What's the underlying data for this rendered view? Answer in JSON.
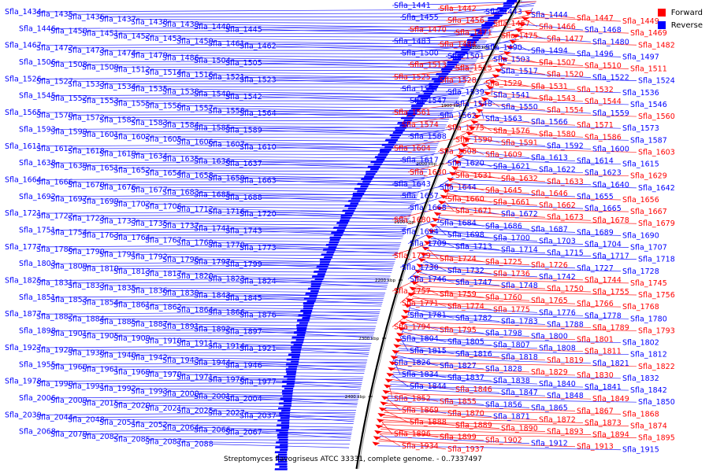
{
  "caption": "Streptomyces flavogriseus ATCC 33331, complete genome. - 0..7337497",
  "legend": {
    "forward": {
      "label": "Forward",
      "color": "#ff0000"
    },
    "reverse": {
      "label": "Reverse",
      "color": "#0000ff"
    }
  },
  "colors": {
    "forward": "#ff0000",
    "reverse": "#0000ff",
    "backbone": "#000000",
    "forward_line": "#ff2020",
    "reverse_line": "#2020ff"
  },
  "scale_ticks": [
    "1800 kbp",
    "1900 kbp",
    "2000 kbp",
    "2100 kbp",
    "2200 kbp",
    "2300 kbp",
    "2400 kbp"
  ],
  "reverse_labels": [
    "Sfla_1434",
    "Sfla_1435",
    "Sfla_1436",
    "Sfla_1437",
    "Sfla_1438",
    "Sfla_1439",
    "Sfla_1440",
    "Sfla_1445",
    "Sfla_1446",
    "Sfla_1450",
    "Sfla_1451",
    "Sfla_1452",
    "Sfla_1453",
    "Sfla_1459",
    "Sfla_1461",
    "Sfla_1462",
    "Sfla_1467",
    "Sfla_1472",
    "Sfla_1473",
    "Sfla_1474",
    "Sfla_1479",
    "Sfla_1486",
    "Sfla_1504",
    "Sfla_1505",
    "Sfla_1506",
    "Sfla_1508",
    "Sfla_1509",
    "Sfla_1512",
    "Sfla_1514",
    "Sfla_1516",
    "Sfla_1521",
    "Sfla_1523",
    "Sfla_1526",
    "Sfla_1527",
    "Sfla_1533",
    "Sfla_1534",
    "Sfla_1535",
    "Sfla_1538",
    "Sfla_1540",
    "Sfla_1542",
    "Sfla_1545",
    "Sfla_1552",
    "Sfla_1553",
    "Sfla_1555",
    "Sfla_1556",
    "Sfla_1557",
    "Sfla_1558",
    "Sfla_1564",
    "Sfla_1565",
    "Sfla_1570",
    "Sfla_1572",
    "Sfla_1582",
    "Sfla_1583",
    "Sfla_1584",
    "Sfla_1585",
    "Sfla_1589",
    "Sfla_1593",
    "Sfla_1599",
    "Sfla_1601",
    "Sfla_1602",
    "Sfla_1605",
    "Sfla_1606",
    "Sfla_1607",
    "Sfla_1610",
    "Sfla_1611",
    "Sfla_1612",
    "Sfla_1618",
    "Sfla_1619",
    "Sfla_1634",
    "Sfla_1635",
    "Sfla_1636",
    "Sfla_1637",
    "Sfla_1638",
    "Sfla_1639",
    "Sfla_1651",
    "Sfla_1652",
    "Sfla_1654",
    "Sfla_1658",
    "Sfla_1659",
    "Sfla_1663",
    "Sfla_1664",
    "Sfla_1666",
    "Sfla_1670",
    "Sfla_1676",
    "Sfla_1677",
    "Sfla_1683",
    "Sfla_1685",
    "Sfla_1688",
    "Sfla_1692",
    "Sfla_1697",
    "Sfla_1699",
    "Sfla_1702",
    "Sfla_1706",
    "Sfla_1712",
    "Sfla_1716",
    "Sfla_1720",
    "Sfla_1721",
    "Sfla_1722",
    "Sfla_1723",
    "Sfla_1733",
    "Sfla_1735",
    "Sfla_1737",
    "Sfla_1741",
    "Sfla_1743",
    "Sfla_1751",
    "Sfla_1754",
    "Sfla_1763",
    "Sfla_1764",
    "Sfla_1767",
    "Sfla_1769",
    "Sfla_1770",
    "Sfla_1773",
    "Sfla_1777",
    "Sfla_1786",
    "Sfla_1790",
    "Sfla_1791",
    "Sfla_1792",
    "Sfla_1796",
    "Sfla_1797",
    "Sfla_1799",
    "Sfla_1803",
    "Sfla_1809",
    "Sfla_1810",
    "Sfla_1813",
    "Sfla_1817",
    "Sfla_1820",
    "Sfla_1823",
    "Sfla_1824",
    "Sfla_1825",
    "Sfla_1831",
    "Sfla_1833",
    "Sfla_1835",
    "Sfla_1836",
    "Sfla_1839",
    "Sfla_1843",
    "Sfla_1845",
    "Sfla_1851",
    "Sfla_1853",
    "Sfla_1854",
    "Sfla_1861",
    "Sfla_1862",
    "Sfla_1864",
    "Sfla_1866",
    "Sfla_1876",
    "Sfla_1877",
    "Sfla_1882",
    "Sfla_1884",
    "Sfla_1885",
    "Sfla_1887",
    "Sfla_1891",
    "Sfla_1892",
    "Sfla_1897",
    "Sfla_1898",
    "Sfla_1901",
    "Sfla_1905",
    "Sfla_1909",
    "Sfla_1910",
    "Sfla_1911",
    "Sfla_1914",
    "Sfla_1921",
    "Sfla_1927",
    "Sfla_1929",
    "Sfla_1938",
    "Sfla_1940",
    "Sfla_1942",
    "Sfla_1943",
    "Sfla_1944",
    "Sfla_1946",
    "Sfla_1955",
    "Sfla_1960",
    "Sfla_1961",
    "Sfla_1969",
    "Sfla_1970",
    "Sfla_1971",
    "Sfla_1976",
    "Sfla_1977",
    "Sfla_1978",
    "Sfla_1990",
    "Sfla_1991",
    "Sfla_1992",
    "Sfla_1993",
    "Sfla_2000",
    "Sfla_2001",
    "Sfla_2004",
    "Sfla_2006",
    "Sfla_2009",
    "Sfla_2015",
    "Sfla_2020",
    "Sfla_2021",
    "Sfla_2025",
    "Sfla_2027",
    "Sfla_2037",
    "Sfla_2039",
    "Sfla_2044",
    "Sfla_2048",
    "Sfla_2051",
    "Sfla_2052",
    "Sfla_2064",
    "Sfla_2066",
    "Sfla_2067",
    "Sfla_2068",
    "Sfla_2079",
    "Sfla_2082",
    "Sfla_2085",
    "Sfla_2087",
    "Sfla_2088"
  ],
  "right_labels": [
    {
      "t": "Sfla_1441",
      "s": "r"
    },
    {
      "t": "Sfla_1442",
      "s": "f"
    },
    {
      "t": "Sfla_1443",
      "s": "r"
    },
    {
      "t": "Sfla_1444",
      "s": "r"
    },
    {
      "t": "Sfla_1447",
      "s": "f"
    },
    {
      "t": "Sfla_1449",
      "s": "f"
    },
    {
      "t": "Sfla_1455",
      "s": "r"
    },
    {
      "t": "Sfla_1456",
      "s": "f"
    },
    {
      "t": "Sfla_1457",
      "s": "f"
    },
    {
      "t": "Sfla_1466",
      "s": "f"
    },
    {
      "t": "Sfla_1468",
      "s": "r"
    },
    {
      "t": "Sfla_1469",
      "s": "f"
    },
    {
      "t": "Sfla_1470",
      "s": "f"
    },
    {
      "t": "Sfla_1471",
      "s": "f"
    },
    {
      "t": "Sfla_1475",
      "s": "f"
    },
    {
      "t": "Sfla_1477",
      "s": "f"
    },
    {
      "t": "Sfla_1480",
      "s": "r"
    },
    {
      "t": "Sfla_1482",
      "s": "f"
    },
    {
      "t": "Sfla_1483",
      "s": "r"
    },
    {
      "t": "Sfla_1484",
      "s": "f"
    },
    {
      "t": "Sfla_1490",
      "s": "r"
    },
    {
      "t": "Sfla_1494",
      "s": "r"
    },
    {
      "t": "Sfla_1496",
      "s": "r"
    },
    {
      "t": "Sfla_1497",
      "s": "r"
    },
    {
      "t": "Sfla_1500",
      "s": "r"
    },
    {
      "t": "Sfla_1501",
      "s": "r"
    },
    {
      "t": "Sfla_1503",
      "s": "r"
    },
    {
      "t": "Sfla_1507",
      "s": "f"
    },
    {
      "t": "Sfla_1510",
      "s": "f"
    },
    {
      "t": "Sfla_1511",
      "s": "f"
    },
    {
      "t": "Sfla_1513",
      "s": "f"
    },
    {
      "t": "Sfla_1515",
      "s": "f"
    },
    {
      "t": "Sfla_1517",
      "s": "r"
    },
    {
      "t": "Sfla_1520",
      "s": "f"
    },
    {
      "t": "Sfla_1522",
      "s": "r"
    },
    {
      "t": "Sfla_1524",
      "s": "r"
    },
    {
      "t": "Sfla_1525",
      "s": "f"
    },
    {
      "t": "Sfla_1528",
      "s": "f"
    },
    {
      "t": "Sfla_1529",
      "s": "f"
    },
    {
      "t": "Sfla_1531",
      "s": "f"
    },
    {
      "t": "Sfla_1532",
      "s": "f"
    },
    {
      "t": "Sfla_1536",
      "s": "r"
    },
    {
      "t": "Sfla_1537",
      "s": "r"
    },
    {
      "t": "Sfla_1539",
      "s": "r"
    },
    {
      "t": "Sfla_1541",
      "s": "r"
    },
    {
      "t": "Sfla_1543",
      "s": "f"
    },
    {
      "t": "Sfla_1544",
      "s": "f"
    },
    {
      "t": "Sfla_1546",
      "s": "r"
    },
    {
      "t": "Sfla_1547",
      "s": "r"
    },
    {
      "t": "Sfla_1548",
      "s": "r"
    },
    {
      "t": "Sfla_1550",
      "s": "r"
    },
    {
      "t": "Sfla_1554",
      "s": "f"
    },
    {
      "t": "Sfla_1559",
      "s": "r"
    },
    {
      "t": "Sfla_1560",
      "s": "f"
    },
    {
      "t": "Sfla_1561",
      "s": "f"
    },
    {
      "t": "Sfla_1562",
      "s": "r"
    },
    {
      "t": "Sfla_1563",
      "s": "r"
    },
    {
      "t": "Sfla_1566",
      "s": "r"
    },
    {
      "t": "Sfla_1571",
      "s": "f"
    },
    {
      "t": "Sfla_1573",
      "s": "r"
    },
    {
      "t": "Sfla_1574",
      "s": "f"
    },
    {
      "t": "Sfla_1575",
      "s": "f"
    },
    {
      "t": "Sfla_1576",
      "s": "f"
    },
    {
      "t": "Sfla_1580",
      "s": "f"
    },
    {
      "t": "Sfla_1586",
      "s": "f"
    },
    {
      "t": "Sfla_1587",
      "s": "r"
    },
    {
      "t": "Sfla_1588",
      "s": "r"
    },
    {
      "t": "Sfla_1590",
      "s": "f"
    },
    {
      "t": "Sfla_1591",
      "s": "f"
    },
    {
      "t": "Sfla_1592",
      "s": "r"
    },
    {
      "t": "Sfla_1600",
      "s": "r"
    },
    {
      "t": "Sfla_1603",
      "s": "f"
    },
    {
      "t": "Sfla_1604",
      "s": "f"
    },
    {
      "t": "Sfla_1608",
      "s": "f"
    },
    {
      "t": "Sfla_1609",
      "s": "f"
    },
    {
      "t": "Sfla_1613",
      "s": "r"
    },
    {
      "t": "Sfla_1614",
      "s": "r"
    },
    {
      "t": "Sfla_1615",
      "s": "r"
    },
    {
      "t": "Sfla_1617",
      "s": "r"
    },
    {
      "t": "Sfla_1620",
      "s": "r"
    },
    {
      "t": "Sfla_1621",
      "s": "r"
    },
    {
      "t": "Sfla_1622",
      "s": "r"
    },
    {
      "t": "Sfla_1623",
      "s": "r"
    },
    {
      "t": "Sfla_1629",
      "s": "f"
    },
    {
      "t": "Sfla_1630",
      "s": "f"
    },
    {
      "t": "Sfla_1631",
      "s": "f"
    },
    {
      "t": "Sfla_1632",
      "s": "f"
    },
    {
      "t": "Sfla_1633",
      "s": "f"
    },
    {
      "t": "Sfla_1640",
      "s": "r"
    },
    {
      "t": "Sfla_1642",
      "s": "r"
    },
    {
      "t": "Sfla_1643",
      "s": "r"
    },
    {
      "t": "Sfla_1644",
      "s": "r"
    },
    {
      "t": "Sfla_1645",
      "s": "f"
    },
    {
      "t": "Sfla_1646",
      "s": "f"
    },
    {
      "t": "Sfla_1655",
      "s": "r"
    },
    {
      "t": "Sfla_1656",
      "s": "f"
    },
    {
      "t": "Sfla_1657",
      "s": "r"
    },
    {
      "t": "Sfla_1660",
      "s": "f"
    },
    {
      "t": "Sfla_1661",
      "s": "f"
    },
    {
      "t": "Sfla_1662",
      "s": "f"
    },
    {
      "t": "Sfla_1665",
      "s": "r"
    },
    {
      "t": "Sfla_1667",
      "s": "f"
    },
    {
      "t": "Sfla_1668",
      "s": "r"
    },
    {
      "t": "Sfla_1671",
      "s": "f"
    },
    {
      "t": "Sfla_1672",
      "s": "r"
    },
    {
      "t": "Sfla_1673",
      "s": "f"
    },
    {
      "t": "Sfla_1678",
      "s": "f"
    },
    {
      "t": "Sfla_1679",
      "s": "f"
    },
    {
      "t": "Sfla_1680",
      "s": "f"
    },
    {
      "t": "Sfla_1684",
      "s": "r"
    },
    {
      "t": "Sfla_1686",
      "s": "r"
    },
    {
      "t": "Sfla_1687",
      "s": "r"
    },
    {
      "t": "Sfla_1689",
      "s": "r"
    },
    {
      "t": "Sfla_1690",
      "s": "r"
    },
    {
      "t": "Sfla_1694",
      "s": "r"
    },
    {
      "t": "Sfla_1698",
      "s": "r"
    },
    {
      "t": "Sfla_1700",
      "s": "r"
    },
    {
      "t": "Sfla_1703",
      "s": "r"
    },
    {
      "t": "Sfla_1704",
      "s": "r"
    },
    {
      "t": "Sfla_1707",
      "s": "r"
    },
    {
      "t": "Sfla_1709",
      "s": "r"
    },
    {
      "t": "Sfla_1713",
      "s": "r"
    },
    {
      "t": "Sfla_1714",
      "s": "r"
    },
    {
      "t": "Sfla_1715",
      "s": "r"
    },
    {
      "t": "Sfla_1717",
      "s": "r"
    },
    {
      "t": "Sfla_1718",
      "s": "r"
    },
    {
      "t": "Sfla_1719",
      "s": "f"
    },
    {
      "t": "Sfla_1724",
      "s": "f"
    },
    {
      "t": "Sfla_1725",
      "s": "f"
    },
    {
      "t": "Sfla_1726",
      "s": "f"
    },
    {
      "t": "Sfla_1727",
      "s": "r"
    },
    {
      "t": "Sfla_1728",
      "s": "r"
    },
    {
      "t": "Sfla_1730",
      "s": "r"
    },
    {
      "t": "Sfla_1732",
      "s": "r"
    },
    {
      "t": "Sfla_1736",
      "s": "f"
    },
    {
      "t": "Sfla_1742",
      "s": "r"
    },
    {
      "t": "Sfla_1744",
      "s": "f"
    },
    {
      "t": "Sfla_1745",
      "s": "f"
    },
    {
      "t": "Sfla_1746",
      "s": "r"
    },
    {
      "t": "Sfla_1747",
      "s": "r"
    },
    {
      "t": "Sfla_1748",
      "s": "r"
    },
    {
      "t": "Sfla_1750",
      "s": "f"
    },
    {
      "t": "Sfla_1755",
      "s": "f"
    },
    {
      "t": "Sfla_1756",
      "s": "f"
    },
    {
      "t": "Sfla_1757",
      "s": "f"
    },
    {
      "t": "Sfla_1759",
      "s": "f"
    },
    {
      "t": "Sfla_1760",
      "s": "f"
    },
    {
      "t": "Sfla_1765",
      "s": "f"
    },
    {
      "t": "Sfla_1766",
      "s": "f"
    },
    {
      "t": "Sfla_1768",
      "s": "f"
    },
    {
      "t": "Sfla_1771",
      "s": "f"
    },
    {
      "t": "Sfla_1774",
      "s": "f"
    },
    {
      "t": "Sfla_1775",
      "s": "f"
    },
    {
      "t": "Sfla_1776",
      "s": "r"
    },
    {
      "t": "Sfla_1778",
      "s": "r"
    },
    {
      "t": "Sfla_1780",
      "s": "r"
    },
    {
      "t": "Sfla_1781",
      "s": "r"
    },
    {
      "t": "Sfla_1782",
      "s": "r"
    },
    {
      "t": "Sfla_1783",
      "s": "r"
    },
    {
      "t": "Sfla_1788",
      "s": "r"
    },
    {
      "t": "Sfla_1789",
      "s": "f"
    },
    {
      "t": "Sfla_1793",
      "s": "f"
    },
    {
      "t": "Sfla_1794",
      "s": "f"
    },
    {
      "t": "Sfla_1795",
      "s": "f"
    },
    {
      "t": "Sfla_1798",
      "s": "r"
    },
    {
      "t": "Sfla_1800",
      "s": "r"
    },
    {
      "t": "Sfla_1801",
      "s": "f"
    },
    {
      "t": "Sfla_1802",
      "s": "r"
    },
    {
      "t": "Sfla_1804",
      "s": "r"
    },
    {
      "t": "Sfla_1805",
      "s": "r"
    },
    {
      "t": "Sfla_1807",
      "s": "r"
    },
    {
      "t": "Sfla_1808",
      "s": "r"
    },
    {
      "t": "Sfla_1811",
      "s": "f"
    },
    {
      "t": "Sfla_1812",
      "s": "r"
    },
    {
      "t": "Sfla_1815",
      "s": "r"
    },
    {
      "t": "Sfla_1816",
      "s": "r"
    },
    {
      "t": "Sfla_1818",
      "s": "r"
    },
    {
      "t": "Sfla_1819",
      "s": "f"
    },
    {
      "t": "Sfla_1821",
      "s": "r"
    },
    {
      "t": "Sfla_1822",
      "s": "f"
    },
    {
      "t": "Sfla_1826",
      "s": "r"
    },
    {
      "t": "Sfla_1827",
      "s": "r"
    },
    {
      "t": "Sfla_1828",
      "s": "r"
    },
    {
      "t": "Sfla_1829",
      "s": "f"
    },
    {
      "t": "Sfla_1830",
      "s": "f"
    },
    {
      "t": "Sfla_1832",
      "s": "r"
    },
    {
      "t": "Sfla_1834",
      "s": "r"
    },
    {
      "t": "Sfla_1837",
      "s": "r"
    },
    {
      "t": "Sfla_1838",
      "s": "r"
    },
    {
      "t": "Sfla_1840",
      "s": "r"
    },
    {
      "t": "Sfla_1841",
      "s": "r"
    },
    {
      "t": "Sfla_1842",
      "s": "r"
    },
    {
      "t": "Sfla_1844",
      "s": "r"
    },
    {
      "t": "Sfla_1846",
      "s": "f"
    },
    {
      "t": "Sfla_1847",
      "s": "r"
    },
    {
      "t": "Sfla_1848",
      "s": "r"
    },
    {
      "t": "Sfla_1849",
      "s": "f"
    },
    {
      "t": "Sfla_1850",
      "s": "r"
    },
    {
      "t": "Sfla_1852",
      "s": "f"
    },
    {
      "t": "Sfla_1855",
      "s": "f"
    },
    {
      "t": "Sfla_1856",
      "s": "r"
    },
    {
      "t": "Sfla_1865",
      "s": "r"
    },
    {
      "t": "Sfla_1867",
      "s": "f"
    },
    {
      "t": "Sfla_1868",
      "s": "f"
    },
    {
      "t": "Sfla_1869",
      "s": "f"
    },
    {
      "t": "Sfla_1870",
      "s": "f"
    },
    {
      "t": "Sfla_1871",
      "s": "r"
    },
    {
      "t": "Sfla_1872",
      "s": "f"
    },
    {
      "t": "Sfla_1873",
      "s": "f"
    },
    {
      "t": "Sfla_1874",
      "s": "f"
    },
    {
      "t": "Sfla_1888",
      "s": "f"
    },
    {
      "t": "Sfla_1889",
      "s": "f"
    },
    {
      "t": "Sfla_1890",
      "s": "f"
    },
    {
      "t": "Sfla_1893",
      "s": "f"
    },
    {
      "t": "Sfla_1894",
      "s": "f"
    },
    {
      "t": "Sfla_1895",
      "s": "f"
    },
    {
      "t": "Sfla_1896",
      "s": "f"
    },
    {
      "t": "Sfla_1899",
      "s": "f"
    },
    {
      "t": "Sfla_1902",
      "s": "f"
    },
    {
      "t": "Sfla_1912",
      "s": "r"
    },
    {
      "t": "Sfla_1913",
      "s": "f"
    },
    {
      "t": "Sfla_1915",
      "s": "r"
    },
    {
      "t": "Sfla_1934",
      "s": "f"
    },
    {
      "t": "Sfla_1937",
      "s": "f"
    }
  ]
}
